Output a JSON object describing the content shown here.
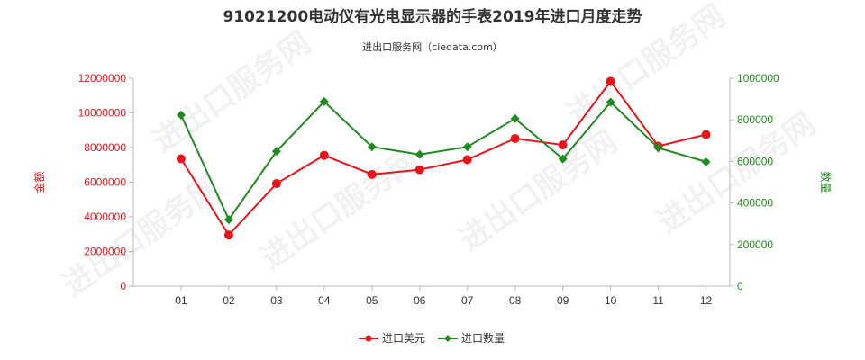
{
  "chart_data": {
    "type": "line",
    "title": "91021200电动仪有光电显示器的手表2019年进口月度走势",
    "subtitle": "进出口服务网（ciedata.com）",
    "watermark": "进出口服务网",
    "categories": [
      "01",
      "02",
      "03",
      "04",
      "05",
      "06",
      "07",
      "08",
      "09",
      "10",
      "11",
      "12"
    ],
    "y_left": {
      "label": "金额",
      "range": [
        0,
        12000000
      ],
      "ticks": [
        "0",
        "2000000",
        "4000000",
        "6000000",
        "8000000",
        "10000000",
        "12000000"
      ],
      "color": "#e8141b"
    },
    "y_right": {
      "label": "数量",
      "range": [
        0,
        1000000
      ],
      "ticks": [
        "0",
        "200000",
        "400000",
        "600000",
        "800000",
        "1000000"
      ],
      "color": "#1f8a1f"
    },
    "series": [
      {
        "name": "进口美元",
        "axis": "left",
        "color": "#e8141b",
        "marker": "circle",
        "values": [
          7350000,
          2950000,
          5920000,
          7550000,
          6450000,
          6720000,
          7300000,
          8520000,
          8150000,
          11820000,
          8080000,
          8750000
        ]
      },
      {
        "name": "进口数量",
        "axis": "right",
        "color": "#1f8a1f",
        "marker": "diamond",
        "values": [
          823000,
          320000,
          648000,
          888000,
          670000,
          633000,
          670000,
          806000,
          612000,
          885000,
          665000,
          598000
        ]
      }
    ],
    "legend_position": "bottom-center",
    "grid": false
  }
}
